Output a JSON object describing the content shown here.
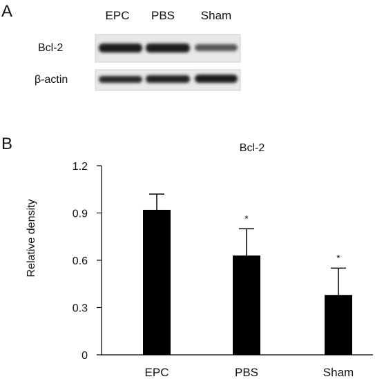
{
  "panel_a": {
    "label": "A",
    "lanes": [
      "EPC",
      "PBS",
      "Sham"
    ],
    "rows": [
      {
        "name": "Bcl-2",
        "intensity": [
          0.9,
          0.85,
          0.55
        ]
      },
      {
        "name": "β-actin",
        "intensity": [
          0.7,
          0.75,
          0.8
        ]
      }
    ]
  },
  "panel_b": {
    "label": "B"
  },
  "chart_data": {
    "type": "bar",
    "title": "Bcl-2",
    "xlabel": "",
    "ylabel": "Relative density",
    "categories": [
      "EPC",
      "PBS",
      "Sham"
    ],
    "values": [
      0.92,
      0.63,
      0.38
    ],
    "errors": [
      0.1,
      0.17,
      0.17
    ],
    "significance": [
      "",
      "*",
      "*"
    ],
    "yticks": [
      "0",
      "0.3",
      "0.6",
      "0.9",
      "1.2"
    ],
    "ylim": [
      0,
      1.2
    ],
    "bar_color": "#000000",
    "grid": false
  }
}
